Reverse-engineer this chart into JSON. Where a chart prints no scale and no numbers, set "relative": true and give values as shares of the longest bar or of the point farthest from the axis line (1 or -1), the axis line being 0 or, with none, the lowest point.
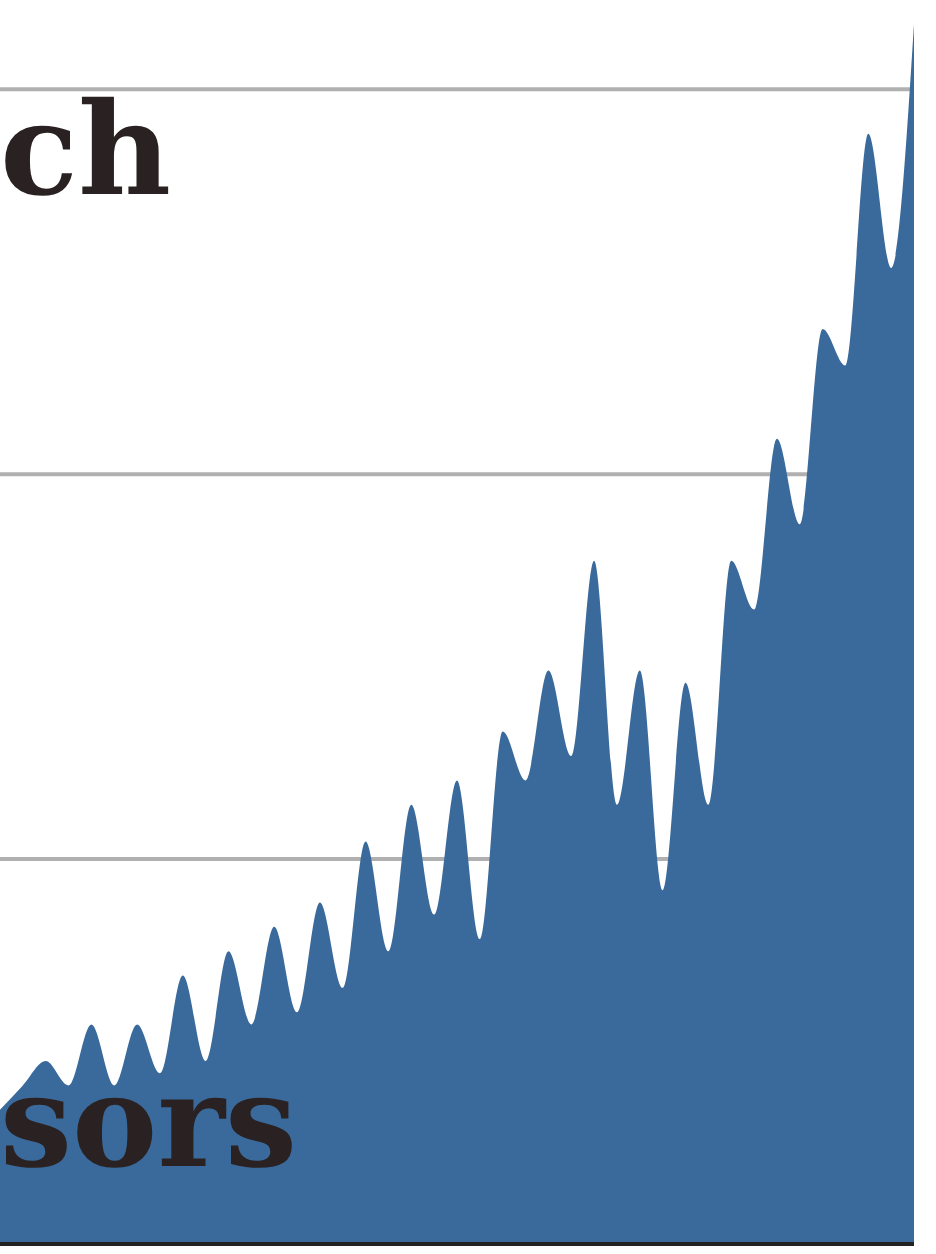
{
  "chart_data": {
    "type": "area",
    "title": "ch",
    "annotations": [
      "sors"
    ],
    "relative": true,
    "grid": true,
    "color": "#3a6a9b",
    "categories": [
      null,
      null,
      null,
      null,
      null,
      null,
      null,
      null,
      null,
      null,
      null,
      null,
      null,
      null,
      null,
      null,
      null,
      null,
      null,
      null,
      null,
      null,
      null,
      null,
      null,
      null,
      null,
      null,
      null,
      null,
      null,
      null,
      null,
      null,
      null,
      null,
      null,
      null,
      null,
      null,
      null
    ],
    "values": [
      0.11,
      0.13,
      0.15,
      0.13,
      0.18,
      0.13,
      0.18,
      0.14,
      0.22,
      0.15,
      0.24,
      0.18,
      0.26,
      0.19,
      0.28,
      0.21,
      0.33,
      0.24,
      0.36,
      0.27,
      0.38,
      0.25,
      0.42,
      0.38,
      0.47,
      0.4,
      0.56,
      0.36,
      0.47,
      0.29,
      0.46,
      0.36,
      0.56,
      0.52,
      0.66,
      0.59,
      0.75,
      0.72,
      0.91,
      0.8,
      1.0
    ]
  }
}
